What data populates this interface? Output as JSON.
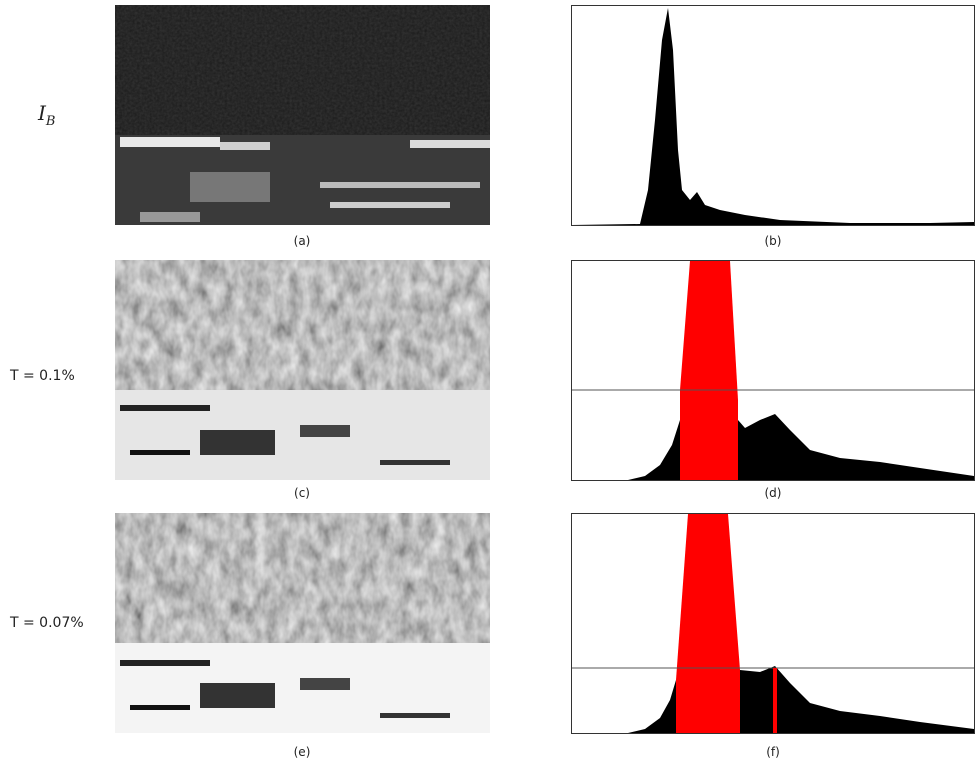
{
  "figure": {
    "rows": [
      {
        "label": {
          "symbol": "I",
          "subscript": "B"
        },
        "image_caption": "(a)",
        "histogram_caption": "(b)"
      },
      {
        "label": "T = 0.1%",
        "image_caption": "(c)",
        "histogram_caption": "(d)"
      },
      {
        "label": "T = 0.07%",
        "image_caption": "(e)",
        "histogram_caption": "(f)"
      }
    ]
  }
}
